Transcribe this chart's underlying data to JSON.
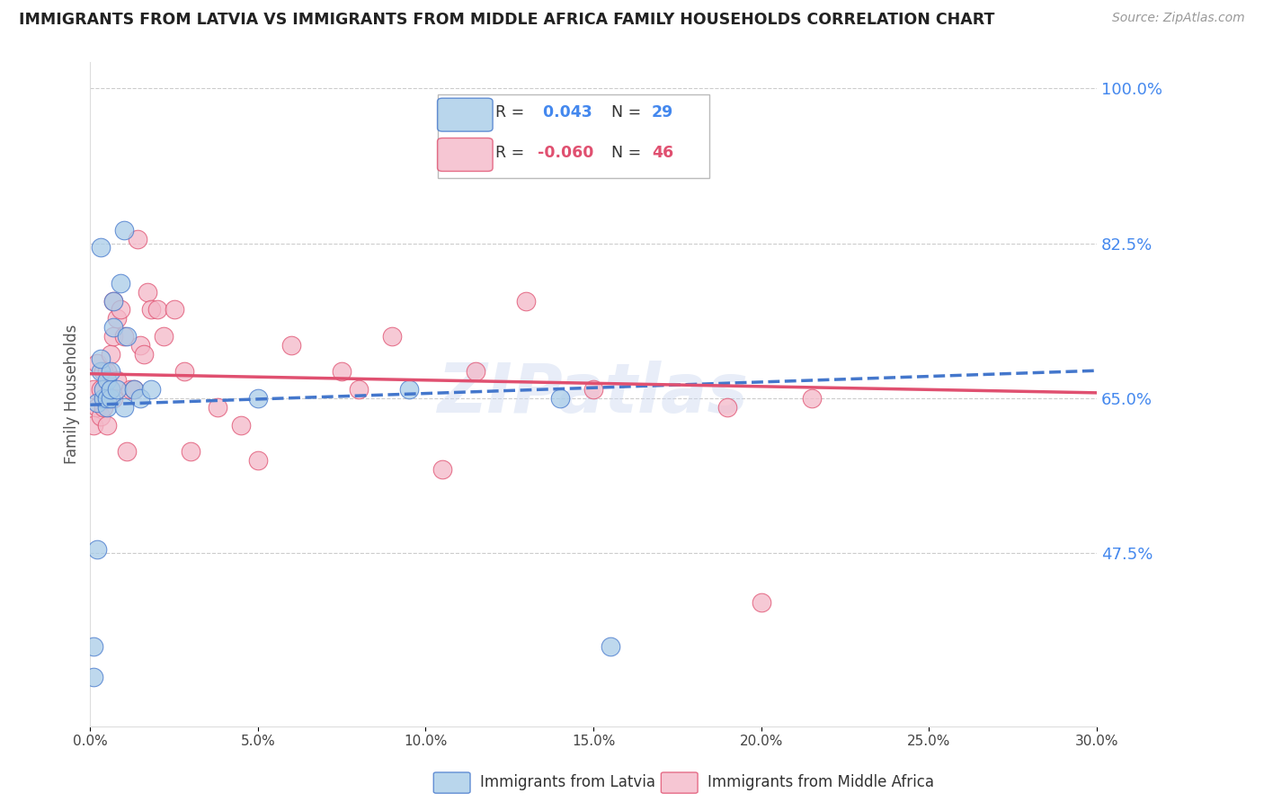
{
  "title": "IMMIGRANTS FROM LATVIA VS IMMIGRANTS FROM MIDDLE AFRICA FAMILY HOUSEHOLDS CORRELATION CHART",
  "source": "Source: ZipAtlas.com",
  "ylabel": "Family Households",
  "watermark": "ZIPatlas",
  "blue_color": "#a8cce8",
  "pink_color": "#f4b8c8",
  "line_blue": "#4477cc",
  "line_pink": "#e05070",
  "title_color": "#222222",
  "right_tick_color": "#4488ee",
  "grid_color": "#cccccc",
  "xmin": 0.0,
  "xmax": 0.3,
  "ymin": 0.28,
  "ymax": 1.03,
  "yticks": [
    1.0,
    0.825,
    0.65,
    0.475
  ],
  "ytick_labels": [
    "100.0%",
    "82.5%",
    "65.0%",
    "47.5%"
  ],
  "xtick_positions": [
    0.0,
    0.05,
    0.1,
    0.15,
    0.2,
    0.25,
    0.3
  ],
  "xtick_labels": [
    "0.0%",
    "5.0%",
    "10.0%",
    "15.0%",
    "20.0%",
    "25.0%",
    "30.0%"
  ],
  "legend_R1": "R = ",
  "legend_V1": " 0.043",
  "legend_N1_label": "N = ",
  "legend_N1_val": "29",
  "legend_R2": "R = ",
  "legend_V2": "-0.060",
  "legend_N2_label": "N = ",
  "legend_N2_val": "46",
  "latvia_x": [
    0.001,
    0.001,
    0.002,
    0.002,
    0.003,
    0.003,
    0.003,
    0.004,
    0.004,
    0.005,
    0.005,
    0.005,
    0.006,
    0.006,
    0.006,
    0.007,
    0.007,
    0.008,
    0.009,
    0.01,
    0.01,
    0.011,
    0.013,
    0.015,
    0.018,
    0.05,
    0.095,
    0.14,
    0.155
  ],
  "latvia_y": [
    0.37,
    0.335,
    0.48,
    0.645,
    0.68,
    0.695,
    0.82,
    0.65,
    0.66,
    0.64,
    0.65,
    0.67,
    0.65,
    0.66,
    0.68,
    0.73,
    0.76,
    0.66,
    0.78,
    0.64,
    0.84,
    0.72,
    0.66,
    0.65,
    0.66,
    0.65,
    0.66,
    0.65,
    0.37
  ],
  "africa_x": [
    0.001,
    0.001,
    0.002,
    0.002,
    0.003,
    0.003,
    0.004,
    0.004,
    0.005,
    0.005,
    0.006,
    0.006,
    0.007,
    0.007,
    0.007,
    0.008,
    0.008,
    0.009,
    0.01,
    0.011,
    0.012,
    0.013,
    0.014,
    0.015,
    0.016,
    0.017,
    0.018,
    0.02,
    0.022,
    0.025,
    0.028,
    0.03,
    0.038,
    0.045,
    0.05,
    0.06,
    0.075,
    0.08,
    0.09,
    0.105,
    0.115,
    0.13,
    0.15,
    0.19,
    0.2,
    0.215
  ],
  "africa_y": [
    0.62,
    0.66,
    0.64,
    0.69,
    0.63,
    0.66,
    0.64,
    0.68,
    0.62,
    0.68,
    0.66,
    0.7,
    0.65,
    0.72,
    0.76,
    0.74,
    0.67,
    0.75,
    0.72,
    0.59,
    0.66,
    0.66,
    0.83,
    0.71,
    0.7,
    0.77,
    0.75,
    0.75,
    0.72,
    0.75,
    0.68,
    0.59,
    0.64,
    0.62,
    0.58,
    0.71,
    0.68,
    0.66,
    0.72,
    0.57,
    0.68,
    0.76,
    0.66,
    0.64,
    0.42,
    0.65
  ]
}
